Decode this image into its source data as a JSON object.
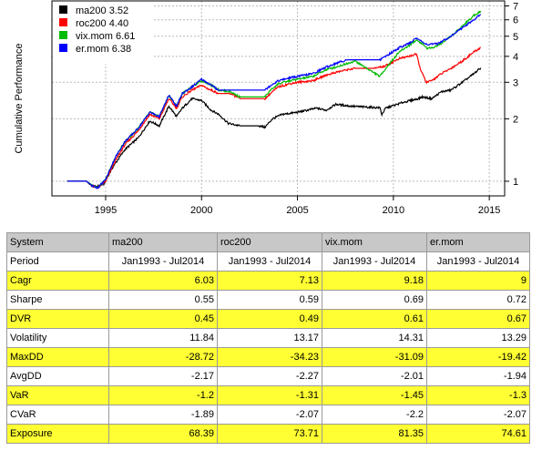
{
  "chart_data": {
    "type": "line",
    "ylabel": "Cumulative Performance",
    "xlabel": "",
    "y_scale": "log",
    "xlim": [
      1992.2,
      2015.8
    ],
    "ylim": [
      0.85,
      7.4
    ],
    "x_ticks": [
      1995,
      2000,
      2005,
      2010,
      2015
    ],
    "y_ticks": [
      1,
      2,
      3,
      4,
      5,
      6,
      7
    ],
    "grid": true,
    "legend_position": "top-left",
    "series": [
      {
        "name": "ma200",
        "legend_label": "ma200 3.52",
        "color": "#000000",
        "points": [
          [
            1993.0,
            1.0
          ],
          [
            1994.0,
            1.0
          ],
          [
            1994.2,
            0.96
          ],
          [
            1994.5,
            0.94
          ],
          [
            1994.9,
            0.97
          ],
          [
            1995.4,
            1.18
          ],
          [
            1996.0,
            1.42
          ],
          [
            1996.7,
            1.62
          ],
          [
            1997.3,
            1.95
          ],
          [
            1997.8,
            1.85
          ],
          [
            1998.3,
            2.3
          ],
          [
            1998.7,
            2.05
          ],
          [
            1999.0,
            2.25
          ],
          [
            1999.5,
            2.5
          ],
          [
            2000.0,
            2.45
          ],
          [
            2000.5,
            2.2
          ],
          [
            2000.9,
            2.1
          ],
          [
            2001.4,
            1.9
          ],
          [
            2002.0,
            1.85
          ],
          [
            2003.0,
            1.85
          ],
          [
            2003.3,
            1.82
          ],
          [
            2003.7,
            2.0
          ],
          [
            2004.2,
            2.1
          ],
          [
            2005.0,
            2.15
          ],
          [
            2006.0,
            2.25
          ],
          [
            2006.5,
            2.2
          ],
          [
            2007.0,
            2.35
          ],
          [
            2007.8,
            2.3
          ],
          [
            2008.5,
            2.28
          ],
          [
            2009.3,
            2.26
          ],
          [
            2009.4,
            2.1
          ],
          [
            2009.6,
            2.25
          ],
          [
            2010.5,
            2.4
          ],
          [
            2011.3,
            2.5
          ],
          [
            2011.5,
            2.55
          ],
          [
            2012.0,
            2.5
          ],
          [
            2012.5,
            2.7
          ],
          [
            2013.0,
            2.75
          ],
          [
            2013.6,
            3.0
          ],
          [
            2014.2,
            3.3
          ],
          [
            2014.55,
            3.52
          ]
        ]
      },
      {
        "name": "roc200",
        "legend_label": "roc200 4.40",
        "color": "#ff0000",
        "points": [
          [
            1993.0,
            1.0
          ],
          [
            1994.0,
            1.0
          ],
          [
            1994.3,
            0.95
          ],
          [
            1994.6,
            0.93
          ],
          [
            1995.0,
            1.0
          ],
          [
            1995.5,
            1.25
          ],
          [
            1996.0,
            1.5
          ],
          [
            1996.7,
            1.75
          ],
          [
            1997.3,
            2.1
          ],
          [
            1997.8,
            2.0
          ],
          [
            1998.3,
            2.5
          ],
          [
            1998.7,
            2.25
          ],
          [
            1999.0,
            2.55
          ],
          [
            1999.5,
            2.75
          ],
          [
            2000.0,
            2.9
          ],
          [
            2000.3,
            2.8
          ],
          [
            2000.9,
            2.65
          ],
          [
            2001.5,
            2.65
          ],
          [
            2002.0,
            2.5
          ],
          [
            2003.3,
            2.5
          ],
          [
            2003.6,
            2.65
          ],
          [
            2004.0,
            2.85
          ],
          [
            2004.6,
            2.95
          ],
          [
            2005.0,
            3.0
          ],
          [
            2005.8,
            3.05
          ],
          [
            2006.5,
            3.25
          ],
          [
            2007.0,
            3.35
          ],
          [
            2007.6,
            3.45
          ],
          [
            2008.0,
            3.5
          ],
          [
            2009.0,
            3.5
          ],
          [
            2009.6,
            3.6
          ],
          [
            2010.3,
            3.9
          ],
          [
            2010.8,
            4.0
          ],
          [
            2011.2,
            4.1
          ],
          [
            2011.4,
            3.5
          ],
          [
            2011.7,
            3.0
          ],
          [
            2012.0,
            3.05
          ],
          [
            2012.5,
            3.3
          ],
          [
            2013.0,
            3.5
          ],
          [
            2013.6,
            3.8
          ],
          [
            2014.2,
            4.2
          ],
          [
            2014.55,
            4.4
          ]
        ]
      },
      {
        "name": "vix.mom",
        "legend_label": "vix.mom 6.61",
        "color": "#00bb00",
        "points": [
          [
            1993.0,
            1.0
          ],
          [
            1994.0,
            1.0
          ],
          [
            1994.3,
            0.96
          ],
          [
            1994.6,
            0.93
          ],
          [
            1995.0,
            1.02
          ],
          [
            1995.5,
            1.3
          ],
          [
            1996.0,
            1.55
          ],
          [
            1996.7,
            1.8
          ],
          [
            1997.3,
            2.15
          ],
          [
            1997.8,
            2.05
          ],
          [
            1998.3,
            2.6
          ],
          [
            1998.7,
            2.3
          ],
          [
            1999.0,
            2.65
          ],
          [
            1999.5,
            2.85
          ],
          [
            2000.0,
            3.05
          ],
          [
            2000.4,
            2.95
          ],
          [
            2000.9,
            2.75
          ],
          [
            2001.5,
            2.7
          ],
          [
            2002.0,
            2.55
          ],
          [
            2003.3,
            2.55
          ],
          [
            2003.6,
            2.75
          ],
          [
            2004.0,
            2.95
          ],
          [
            2004.6,
            3.05
          ],
          [
            2005.0,
            3.1
          ],
          [
            2005.8,
            3.2
          ],
          [
            2006.5,
            3.45
          ],
          [
            2007.0,
            3.55
          ],
          [
            2007.6,
            3.7
          ],
          [
            2008.0,
            3.8
          ],
          [
            2009.3,
            3.2
          ],
          [
            2009.6,
            3.5
          ],
          [
            2010.3,
            4.2
          ],
          [
            2010.8,
            4.5
          ],
          [
            2011.2,
            4.8
          ],
          [
            2011.5,
            4.6
          ],
          [
            2011.8,
            4.35
          ],
          [
            2012.3,
            4.5
          ],
          [
            2013.0,
            5.0
          ],
          [
            2013.6,
            5.6
          ],
          [
            2014.2,
            6.3
          ],
          [
            2014.55,
            6.61
          ]
        ]
      },
      {
        "name": "er.mom",
        "legend_label": "er.mom 6.38",
        "color": "#0000ff",
        "points": [
          [
            1993.0,
            1.0
          ],
          [
            1994.0,
            1.0
          ],
          [
            1994.3,
            0.95
          ],
          [
            1994.6,
            0.93
          ],
          [
            1995.0,
            1.02
          ],
          [
            1995.5,
            1.3
          ],
          [
            1996.0,
            1.55
          ],
          [
            1996.7,
            1.8
          ],
          [
            1997.3,
            2.15
          ],
          [
            1997.8,
            2.05
          ],
          [
            1998.3,
            2.6
          ],
          [
            1998.7,
            2.3
          ],
          [
            1999.0,
            2.65
          ],
          [
            1999.5,
            2.85
          ],
          [
            2000.0,
            3.1
          ],
          [
            2000.4,
            2.95
          ],
          [
            2000.9,
            2.75
          ],
          [
            2001.5,
            2.75
          ],
          [
            2002.0,
            2.75
          ],
          [
            2003.3,
            2.75
          ],
          [
            2003.6,
            2.9
          ],
          [
            2004.0,
            3.05
          ],
          [
            2004.6,
            3.15
          ],
          [
            2005.0,
            3.2
          ],
          [
            2005.8,
            3.3
          ],
          [
            2006.5,
            3.55
          ],
          [
            2007.0,
            3.7
          ],
          [
            2007.6,
            3.85
          ],
          [
            2008.0,
            3.85
          ],
          [
            2009.3,
            3.85
          ],
          [
            2009.6,
            4.0
          ],
          [
            2010.3,
            4.4
          ],
          [
            2010.8,
            4.6
          ],
          [
            2011.2,
            4.9
          ],
          [
            2011.5,
            4.7
          ],
          [
            2011.8,
            4.55
          ],
          [
            2012.3,
            4.6
          ],
          [
            2013.0,
            5.0
          ],
          [
            2013.6,
            5.5
          ],
          [
            2014.2,
            6.0
          ],
          [
            2014.55,
            6.38
          ]
        ]
      }
    ]
  },
  "table": {
    "header": [
      "System",
      "ma200",
      "roc200",
      "vix.mom",
      "er.mom"
    ],
    "rows": [
      {
        "label": "Period",
        "values": [
          "Jan1993 - Jul2014",
          "Jan1993 - Jul2014",
          "Jan1993 - Jul2014",
          "Jan1993 - Jul2014"
        ],
        "highlight": false
      },
      {
        "label": "Cagr",
        "values": [
          "6.03",
          "7.13",
          "9.18",
          "9"
        ],
        "highlight": true
      },
      {
        "label": "Sharpe",
        "values": [
          "0.55",
          "0.59",
          "0.69",
          "0.72"
        ],
        "highlight": false
      },
      {
        "label": "DVR",
        "values": [
          "0.45",
          "0.49",
          "0.61",
          "0.67"
        ],
        "highlight": true
      },
      {
        "label": "Volatility",
        "values": [
          "11.84",
          "13.17",
          "14.31",
          "13.29"
        ],
        "highlight": false
      },
      {
        "label": "MaxDD",
        "values": [
          "-28.72",
          "-34.23",
          "-31.09",
          "-19.42"
        ],
        "highlight": true
      },
      {
        "label": "AvgDD",
        "values": [
          "-2.17",
          "-2.27",
          "-2.01",
          "-1.94"
        ],
        "highlight": false
      },
      {
        "label": "VaR",
        "values": [
          "-1.2",
          "-1.31",
          "-1.45",
          "-1.3"
        ],
        "highlight": true
      },
      {
        "label": "CVaR",
        "values": [
          "-1.89",
          "-2.07",
          "-2.2",
          "-2.07"
        ],
        "highlight": false
      },
      {
        "label": "Exposure",
        "values": [
          "68.39",
          "73.71",
          "81.35",
          "74.61"
        ],
        "highlight": true
      }
    ]
  }
}
